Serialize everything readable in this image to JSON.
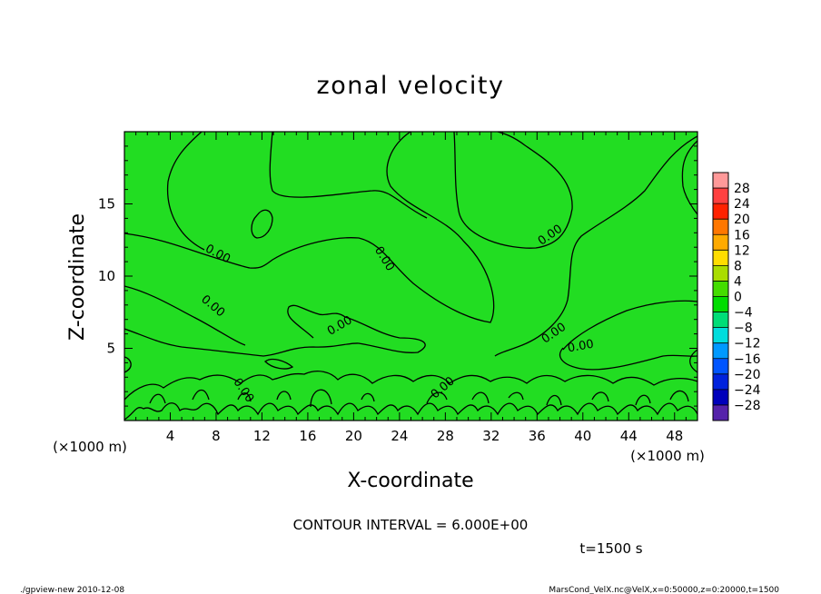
{
  "chart_data": {
    "type": "contour",
    "title": "zonal velocity",
    "xlabel": "X-coordinate",
    "ylabel": "Z-coordinate",
    "x_unit_label": "(×1000 m)",
    "y_unit_label": "(×1000 m)",
    "xlim": [
      0,
      50
    ],
    "ylim": [
      0,
      20
    ],
    "x_ticks": [
      4,
      8,
      12,
      16,
      20,
      24,
      28,
      32,
      36,
      40,
      44,
      48
    ],
    "y_ticks": [
      5,
      10,
      15
    ],
    "fill_color": "#22dd22",
    "contour_label": "0.00",
    "contour_interval_text": "CONTOUR INTERVAL = 6.000E+00",
    "time_text": "t=1500 s",
    "colorbar": {
      "levels": [
        28,
        24,
        20,
        16,
        12,
        8,
        4,
        0,
        -4,
        -8,
        -12,
        -16,
        -20,
        -24,
        -28
      ],
      "colors": [
        "#ff9999",
        "#ff4040",
        "#ff2200",
        "#ff7700",
        "#ffaa00",
        "#ffdd00",
        "#aadd00",
        "#44dd00",
        "#00dd00",
        "#00dd77",
        "#00dddd",
        "#0099ff",
        "#0055ff",
        "#0022dd",
        "#0000bb",
        "#5522aa"
      ]
    }
  },
  "footer": {
    "left": "./gpview-new  2010-12-08",
    "right": "MarsCond_VelX.nc@VelX,x=0:50000,z=0:20000,t=1500"
  }
}
